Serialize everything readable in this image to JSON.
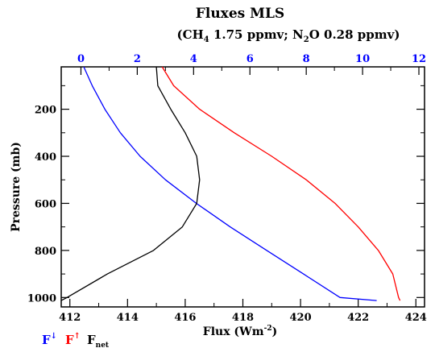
{
  "chart_data": {
    "type": "line",
    "title": "Fluxes MLS",
    "subtitle_parts": {
      "open": "(CH",
      "ch4_sub": "4",
      "ch4_val": " 1.75 ppmv; N",
      "n2o_sub": "2",
      "n2o_val": "O 0.28 ppmv)"
    },
    "ylabel": "Pressure (mb)",
    "xlabel_parts": {
      "main": "Flux (Wm",
      "sup": "-2",
      "close": ")"
    },
    "y_axis": {
      "range": [
        1040,
        20
      ],
      "inverted": true,
      "ticks": [
        200,
        400,
        600,
        800,
        1000
      ]
    },
    "x_bottom": {
      "range": [
        411.7,
        424.3
      ],
      "ticks": [
        412,
        414,
        416,
        418,
        420,
        422,
        424
      ]
    },
    "x_top": {
      "range": [
        -0.7,
        12.2
      ],
      "ticks": [
        0,
        2,
        4,
        6,
        8,
        10,
        12
      ],
      "color": "#0000ff"
    },
    "legend": [
      {
        "symbol": "F",
        "mark": "↓",
        "color": "#0000ff",
        "name_part": "down"
      },
      {
        "symbol": "F",
        "mark": "↑",
        "color": "#ff0000",
        "name_part": "up"
      },
      {
        "symbol": "F",
        "mark": "net",
        "color": "#000000",
        "name_part": "net"
      }
    ],
    "legend_placement": "bottom-left",
    "series": [
      {
        "axis": "top",
        "color": "#0000ff",
        "x": [
          0.1,
          0.4,
          0.85,
          1.4,
          2.1,
          3.0,
          4.1,
          5.3,
          6.6,
          7.9,
          9.2,
          10.5
        ],
        "y": [
          20,
          100,
          200,
          300,
          400,
          500,
          600,
          700,
          800,
          900,
          1000,
          1013
        ]
      },
      {
        "axis": "bottom",
        "color": "#ff0000",
        "x": [
          415.2,
          415.6,
          416.5,
          417.7,
          419.0,
          420.2,
          421.2,
          422.0,
          422.7,
          423.2,
          423.4,
          423.45
        ],
        "y": [
          20,
          100,
          200,
          300,
          400,
          500,
          600,
          700,
          800,
          900,
          1000,
          1013
        ]
      },
      {
        "axis": "bottom",
        "color": "#000000",
        "x": [
          415.0,
          415.05,
          415.5,
          416.0,
          416.4,
          416.5,
          416.4,
          415.9,
          414.9,
          413.3,
          411.9,
          411.7
        ],
        "y": [
          20,
          100,
          200,
          300,
          400,
          500,
          600,
          700,
          800,
          900,
          1000,
          1013
        ]
      }
    ]
  }
}
